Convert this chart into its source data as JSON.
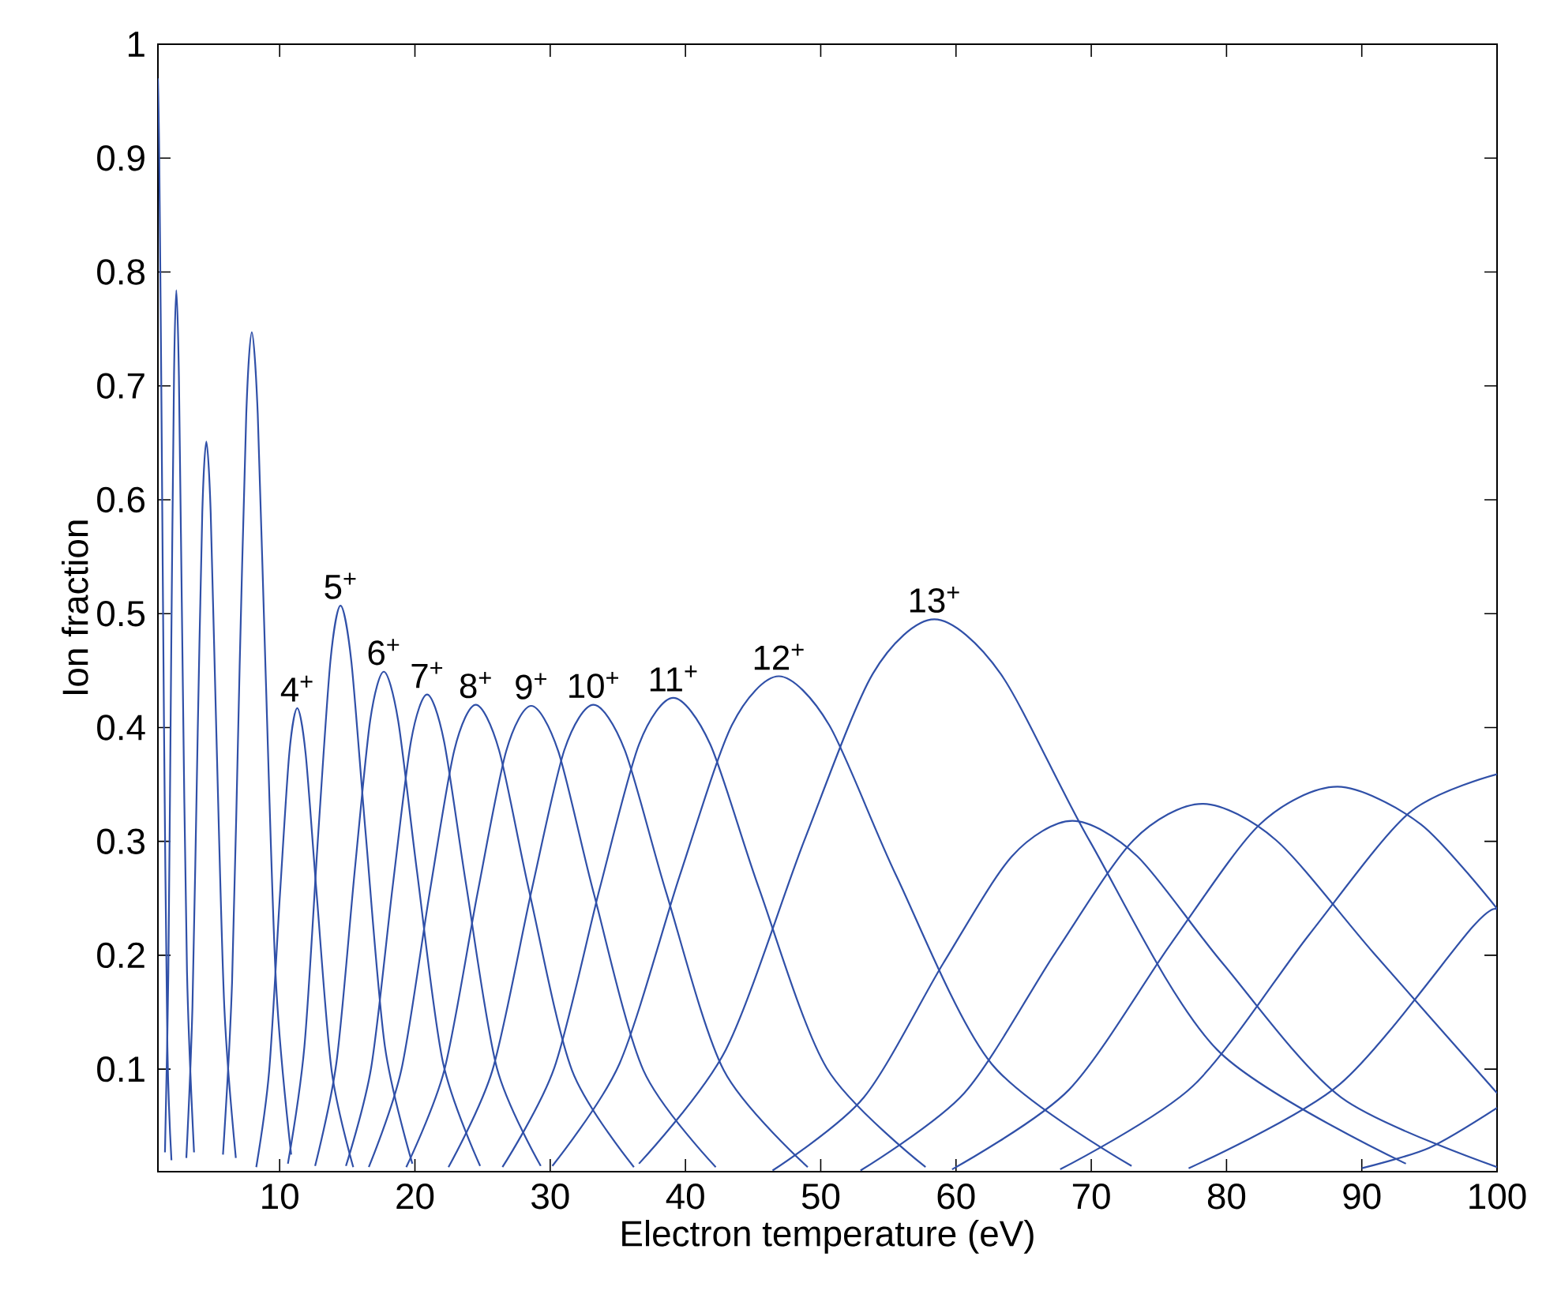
{
  "chart_data": {
    "type": "line",
    "xlabel": "Electron temperature (eV)",
    "ylabel": "Ion fraction",
    "xlim": [
      1,
      100
    ],
    "ylim": [
      0.01,
      1
    ],
    "xticks": [
      10,
      20,
      30,
      40,
      50,
      60,
      70,
      80,
      90,
      100
    ],
    "yticks": [
      0.1,
      0.2,
      0.3,
      0.4,
      0.5,
      0.6,
      0.7,
      0.8,
      0.9,
      1
    ],
    "marker": "none",
    "line_style": "solid",
    "series": [
      {
        "color": "#3050a8",
        "x": [
          1,
          1.1,
          1.25,
          1.45,
          1.7,
          2.0
        ],
        "values": [
          0.97,
          0.9,
          0.7,
          0.4,
          0.12,
          0.02
        ]
      },
      {
        "color": "#3050a8",
        "x": [
          1.52,
          1.77,
          1.99,
          2.19,
          2.36,
          2.55,
          2.8,
          3.15,
          3.67
        ],
        "values": [
          0.027,
          0.185,
          0.476,
          0.709,
          0.784,
          0.709,
          0.476,
          0.185,
          0.027
        ]
      },
      {
        "color": "#3050a8",
        "x": [
          3.1,
          3.55,
          3.94,
          4.28,
          4.58,
          4.9,
          5.32,
          5.91,
          6.76
        ],
        "values": [
          0.022,
          0.154,
          0.395,
          0.589,
          0.651,
          0.589,
          0.395,
          0.154,
          0.022
        ]
      },
      {
        "color": "#3050a8",
        "x": [
          5.81,
          6.48,
          7.04,
          7.53,
          7.94,
          8.38,
          8.95,
          9.73,
          10.85
        ],
        "values": [
          0.025,
          0.176,
          0.453,
          0.675,
          0.747,
          0.675,
          0.453,
          0.176,
          0.025
        ]
      },
      {
        "color": "#3050a8",
        "x": [
          8.27,
          9.22,
          10.02,
          10.71,
          11.3,
          11.92,
          12.74,
          13.85,
          15.44
        ],
        "values": [
          0.014,
          0.098,
          0.253,
          0.377,
          0.417,
          0.377,
          0.253,
          0.098,
          0.014
        ]
      },
      {
        "color": "#3050a8",
        "x": [
          10.61,
          11.83,
          12.86,
          13.75,
          14.5,
          15.3,
          16.35,
          17.78,
          19.81
        ],
        "values": [
          0.017,
          0.12,
          0.308,
          0.458,
          0.507,
          0.458,
          0.308,
          0.12,
          0.017
        ]
      },
      {
        "color": "#3050a8",
        "x": [
          12.62,
          14.2,
          15.54,
          16.69,
          17.7,
          18.76,
          20.16,
          22.07,
          24.82
        ],
        "values": [
          0.015,
          0.106,
          0.273,
          0.406,
          0.449,
          0.406,
          0.273,
          0.106,
          0.015
        ]
      },
      {
        "color": "#3050a8",
        "x": [
          14.9,
          16.76,
          18.35,
          19.71,
          20.9,
          22.15,
          23.81,
          26.06,
          29.3
        ],
        "values": [
          0.015,
          0.101,
          0.26,
          0.388,
          0.429,
          0.388,
          0.26,
          0.101,
          0.015
        ]
      },
      {
        "color": "#3050a8",
        "x": [
          16.59,
          18.99,
          21.09,
          22.91,
          24.5,
          26.22,
          28.47,
          31.61,
          36.19
        ],
        "values": [
          0.014,
          0.099,
          0.255,
          0.38,
          0.42,
          0.38,
          0.255,
          0.099,
          0.014
        ]
      },
      {
        "color": "#3050a8",
        "x": [
          19.36,
          22.17,
          24.62,
          26.74,
          28.6,
          30.6,
          33.23,
          36.89,
          42.24
        ],
        "values": [
          0.014,
          0.099,
          0.254,
          0.379,
          0.419,
          0.379,
          0.254,
          0.099,
          0.014
        ]
      },
      {
        "color": "#3050a8",
        "x": [
          22.48,
          25.73,
          28.59,
          31.04,
          33.2,
          35.52,
          38.58,
          42.83,
          49.04
        ],
        "values": [
          0.014,
          0.099,
          0.255,
          0.38,
          0.42,
          0.38,
          0.255,
          0.099,
          0.014
        ]
      },
      {
        "color": "#3050a8",
        "x": [
          26.47,
          30.3,
          33.67,
          36.56,
          39.1,
          41.84,
          45.43,
          50.44,
          57.75
        ],
        "values": [
          0.014,
          0.101,
          0.259,
          0.385,
          0.426,
          0.385,
          0.259,
          0.101,
          0.014
        ]
      },
      {
        "color": "#3050a8",
        "x": [
          30.16,
          35.13,
          39.58,
          43.43,
          46.9,
          50.63,
          55.58,
          62.61,
          72.98
        ],
        "values": [
          0.015,
          0.105,
          0.27,
          0.402,
          0.445,
          0.402,
          0.27,
          0.105,
          0.015
        ]
      },
      {
        "color": "#3050a8",
        "x": [
          36.56,
          42.98,
          48.76,
          53.84,
          58.4,
          63.31,
          69.9,
          79.31,
          93.26
        ],
        "values": [
          0.017,
          0.117,
          0.3,
          0.447,
          0.495,
          0.447,
          0.3,
          0.117,
          0.017
        ]
      },
      {
        "color": "#3050a8",
        "x": [
          46.44,
          53.17,
          59.06,
          64.14,
          68.6,
          73.4,
          79.71,
          88.49,
          100
        ],
        "values": [
          0.011,
          0.075,
          0.193,
          0.287,
          0.318,
          0.287,
          0.193,
          0.075,
          0.014
        ]
      },
      {
        "color": "#3050a8",
        "x": [
          52.94,
          60.61,
          67.33,
          73.12,
          78.2,
          83.67,
          90.87,
          100
        ],
        "values": [
          0.011,
          0.079,
          0.202,
          0.301,
          0.333,
          0.301,
          0.202,
          0.079
        ]
      },
      {
        "color": "#3050a8",
        "x": [
          59.71,
          68.36,
          75.94,
          82.47,
          88.2,
          94.37,
          100
        ],
        "values": [
          0.012,
          0.082,
          0.211,
          0.315,
          0.348,
          0.315,
          0.241
        ]
      },
      {
        "color": "#3050a8",
        "x": [
          67.7,
          77.5,
          86.1,
          93.5,
          100
        ],
        "values": [
          0.012,
          0.085,
          0.218,
          0.325,
          0.359
        ]
      },
      {
        "color": "#3050a8",
        "x": [
          77.2,
          88.4,
          98.2,
          100
        ],
        "values": [
          0.013,
          0.087,
          0.225,
          0.24
        ]
      },
      {
        "color": "#3050a8",
        "x": [
          90,
          95,
          100
        ],
        "values": [
          0.013,
          0.031,
          0.066
        ]
      }
    ],
    "annotations": [
      {
        "text": "4$^{+}$",
        "x": 11.3,
        "y": 0.417
      },
      {
        "text": "5$^{+}$",
        "x": 14.5,
        "y": 0.507
      },
      {
        "text": "6$^{+}$",
        "x": 17.7,
        "y": 0.449
      },
      {
        "text": "7$^{+}$",
        "x": 20.9,
        "y": 0.429
      },
      {
        "text": "8$^{+}$",
        "x": 24.5,
        "y": 0.42
      },
      {
        "text": "9$^{+}$",
        "x": 28.6,
        "y": 0.419
      },
      {
        "text": "10$^{+}$",
        "x": 33.2,
        "y": 0.42
      },
      {
        "text": "11$^{+}$",
        "x": 39.1,
        "y": 0.426
      },
      {
        "text": "12$^{+}$",
        "x": 46.9,
        "y": 0.445
      },
      {
        "text": "13$^{+}$",
        "x": 58.4,
        "y": 0.495
      }
    ]
  }
}
